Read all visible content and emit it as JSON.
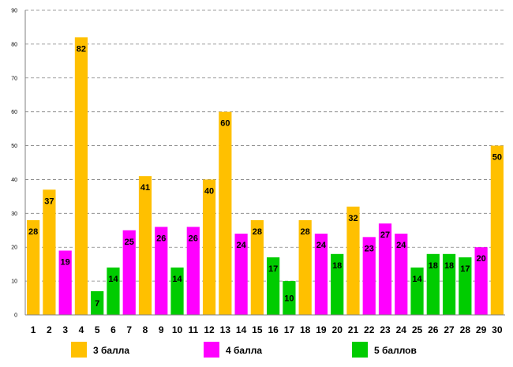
{
  "chart_data": {
    "type": "bar",
    "title": "",
    "xlabel": "",
    "ylabel": "",
    "ylim": [
      0,
      90
    ],
    "yticks": [
      0,
      10,
      20,
      30,
      40,
      50,
      60,
      70,
      80,
      90
    ],
    "grid": true,
    "legend_position": "bottom",
    "categories": [
      "1",
      "2",
      "3",
      "4",
      "5",
      "6",
      "7",
      "8",
      "9",
      "10",
      "11",
      "12",
      "13",
      "14",
      "15",
      "16",
      "17",
      "18",
      "19",
      "20",
      "21",
      "22",
      "23",
      "24",
      "25",
      "26",
      "27",
      "28",
      "29",
      "30"
    ],
    "values": [
      28,
      37,
      19,
      82,
      7,
      14,
      25,
      41,
      26,
      14,
      26,
      40,
      60,
      24,
      28,
      17,
      10,
      28,
      24,
      18,
      32,
      23,
      27,
      24,
      14,
      18,
      18,
      17,
      20,
      50
    ],
    "series_index": [
      0,
      0,
      1,
      0,
      2,
      2,
      1,
      0,
      1,
      2,
      1,
      0,
      0,
      1,
      0,
      2,
      2,
      0,
      1,
      2,
      0,
      1,
      1,
      1,
      2,
      2,
      2,
      2,
      1,
      0
    ],
    "series": [
      {
        "name": "3 балла",
        "color": "#FFC000"
      },
      {
        "name": "4 балла",
        "color": "#FF00FF"
      },
      {
        "name": "5 баллов",
        "color": "#00CC00"
      }
    ]
  }
}
